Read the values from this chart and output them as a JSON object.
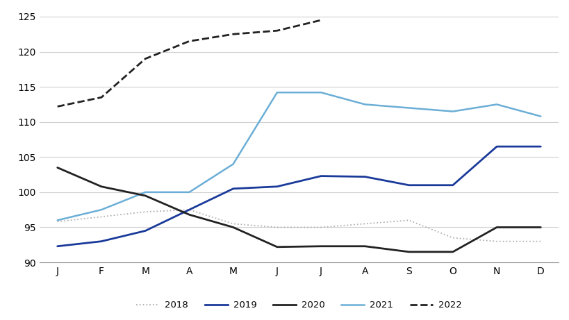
{
  "months": [
    "J",
    "F",
    "M",
    "A",
    "M",
    "J",
    "J",
    "A",
    "S",
    "O",
    "N",
    "D"
  ],
  "series": {
    "2018": [
      95.8,
      96.5,
      97.2,
      97.5,
      95.5,
      95.0,
      95.0,
      95.5,
      96.0,
      93.5,
      93.0,
      93.0
    ],
    "2019": [
      92.3,
      93.0,
      94.5,
      97.5,
      100.5,
      100.8,
      102.3,
      102.2,
      101.0,
      101.0,
      106.5,
      106.5
    ],
    "2020": [
      103.5,
      100.8,
      99.5,
      96.8,
      95.0,
      92.2,
      92.3,
      92.3,
      91.5,
      91.5,
      95.0,
      95.0
    ],
    "2021": [
      96.0,
      97.5,
      100.0,
      100.0,
      104.0,
      114.2,
      114.2,
      112.5,
      112.0,
      111.5,
      112.5,
      110.8
    ],
    "2022": [
      112.2,
      113.5,
      119.0,
      121.5,
      122.5,
      123.0,
      124.5,
      null,
      null,
      null,
      null,
      null
    ]
  },
  "colors": {
    "2018": "#b0b0b0",
    "2019": "#1a3a9a",
    "2020": "#222222",
    "2021": "#6baed6",
    "2022": "#222222"
  },
  "linestyles": {
    "2018": "dotted",
    "2019": "solid",
    "2020": "solid",
    "2021": "solid",
    "2022": "dashed"
  },
  "linewidths": {
    "2018": 1.3,
    "2019": 2.0,
    "2020": 2.0,
    "2021": 1.8,
    "2022": 2.0
  },
  "ylim": [
    90,
    126
  ],
  "yticks": [
    90,
    95,
    100,
    105,
    110,
    115,
    120,
    125
  ],
  "background_color": "#ffffff",
  "grid_color": "#d0d0d0",
  "axis_color": "#888888"
}
